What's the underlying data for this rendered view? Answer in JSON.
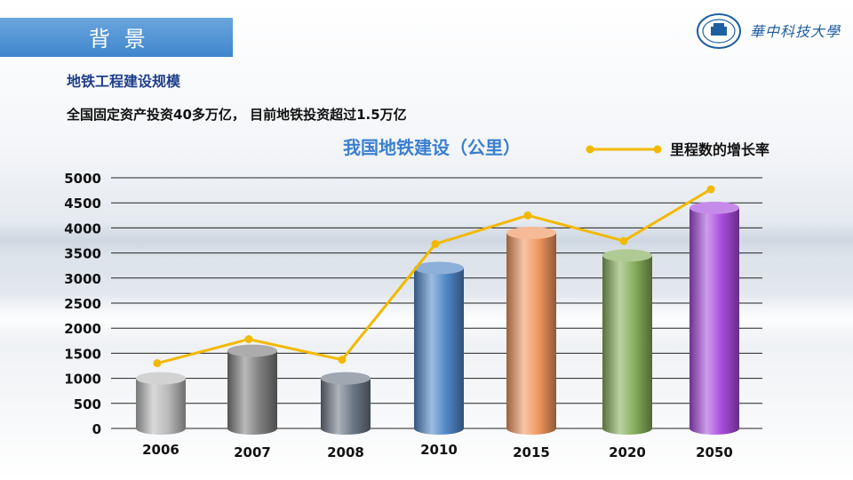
{
  "header": {
    "title": "背 景",
    "logo_text": "華中科技大學"
  },
  "section": {
    "subtitle": "地铁工程建设规模",
    "text": "全国固定资产投资40多万亿，  目前地铁投资超过1.5万亿"
  },
  "chart_data": {
    "type": "bar",
    "title": "我国地铁建设（公里）",
    "categories": [
      "2006",
      "2007",
      "2008",
      "2010",
      "2015",
      "2020",
      "2050"
    ],
    "yticks": [
      "0",
      "500",
      "1000",
      "1500",
      "2000",
      "2500",
      "3000",
      "3500",
      "4000",
      "4500",
      "5000"
    ],
    "ylim": [
      0,
      5000
    ],
    "grid": true,
    "series": [
      {
        "kind": "bar",
        "values": [
          1000,
          1550,
          1000,
          3200,
          3900,
          3450,
          4400
        ]
      },
      {
        "kind": "line",
        "name": "里程数的增长率",
        "values": [
          1300,
          1780,
          1370,
          3680,
          4250,
          3740,
          4770
        ]
      }
    ],
    "bar_colors": [
      "#b9b9b9",
      "#7f7f7f",
      "#6b7785",
      "#4f86c6",
      "#f0955e",
      "#86ad5a",
      "#a84cdc"
    ],
    "line_color": "#f2b900",
    "legend_position": "top-right"
  }
}
